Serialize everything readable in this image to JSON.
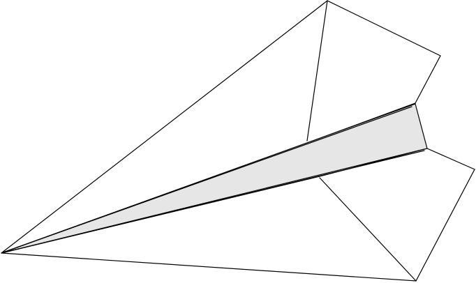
{
  "illustration": {
    "subject": "paper-airplane",
    "colors": {
      "background": "#ffffff",
      "line": "#000000",
      "keel_fill": "#e6e6e6"
    }
  }
}
